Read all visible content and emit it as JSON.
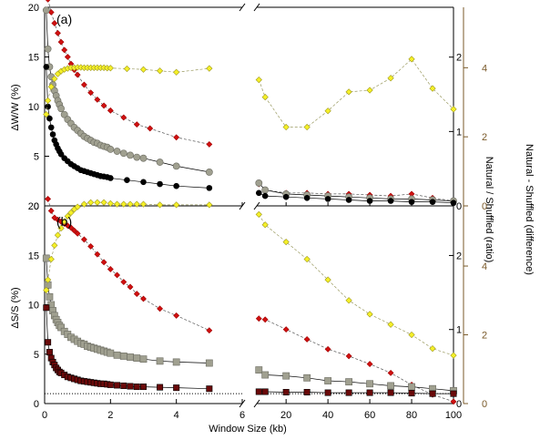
{
  "chart_data": [
    {
      "panel": "a",
      "panel_label": "(a)",
      "type": "line",
      "ylabel": "ΔW/W (%)",
      "ylim": [
        0,
        20
      ],
      "yticks": [
        "0",
        "5",
        "10",
        "15",
        "20"
      ],
      "y2label": "Natural / Shuffled (ratio)",
      "y2lim": [
        0,
        2.67
      ],
      "y2ticks": [
        "0",
        "1",
        "2"
      ],
      "y3label": "Natural - Shuffled (difference)",
      "y3lim": [
        0,
        5.75
      ],
      "y3ticks": [
        "0",
        "2",
        "4"
      ],
      "series": [
        {
          "role": "red",
          "axis": "y",
          "x": [
            0.1,
            0.2,
            0.3,
            0.4,
            0.5,
            0.6,
            0.7,
            0.8,
            0.9,
            1.0,
            1.2,
            1.4,
            1.6,
            1.8,
            2.0,
            2.4,
            2.8,
            3.2,
            4.0,
            5.0,
            7,
            10,
            20,
            30,
            40,
            50,
            60,
            70,
            80,
            90,
            100
          ],
          "y": [
            20.8,
            19.5,
            18.4,
            17.4,
            16.5,
            15.7,
            15.0,
            14.3,
            13.7,
            13.2,
            12.2,
            11.4,
            10.7,
            10.1,
            9.6,
            8.9,
            8.2,
            7.8,
            6.9,
            6.2,
            2.2,
            1.6,
            1.3,
            1.3,
            1.2,
            1.2,
            1.1,
            1.0,
            1.2,
            0.8,
            0.5
          ]
        },
        {
          "role": "gray",
          "axis": "y",
          "x": [
            0.05,
            0.1,
            0.15,
            0.2,
            0.25,
            0.3,
            0.35,
            0.4,
            0.45,
            0.5,
            0.6,
            0.7,
            0.8,
            0.9,
            1.0,
            1.1,
            1.2,
            1.3,
            1.4,
            1.5,
            1.6,
            1.7,
            1.8,
            1.9,
            2.0,
            2.2,
            2.4,
            2.6,
            2.8,
            3.0,
            3.5,
            4.0,
            5.0,
            7,
            10,
            20,
            30,
            40,
            50,
            60,
            70,
            80,
            90,
            100
          ],
          "y": [
            19.7,
            15.8,
            14.0,
            13.0,
            12.2,
            11.6,
            11.1,
            10.6,
            10.2,
            9.8,
            9.2,
            8.7,
            8.3,
            7.9,
            7.6,
            7.3,
            7.0,
            6.8,
            6.6,
            6.4,
            6.3,
            6.1,
            6.0,
            5.9,
            5.7,
            5.5,
            5.3,
            5.1,
            4.9,
            4.8,
            4.4,
            4.0,
            3.4,
            2.3,
            1.6,
            1.2,
            1.1,
            1.0,
            0.9,
            0.8,
            0.7,
            0.7,
            0.6,
            0.5
          ]
        },
        {
          "role": "black",
          "axis": "y",
          "x": [
            0.05,
            0.1,
            0.15,
            0.2,
            0.25,
            0.3,
            0.35,
            0.4,
            0.45,
            0.5,
            0.6,
            0.7,
            0.8,
            0.9,
            1.0,
            1.1,
            1.2,
            1.3,
            1.4,
            1.5,
            1.6,
            1.7,
            1.8,
            1.9,
            2.0,
            2.5,
            3.0,
            3.5,
            4.0,
            5.0,
            7,
            10,
            20,
            30,
            40,
            50,
            60,
            70,
            80,
            90,
            100
          ],
          "y": [
            14.0,
            10.0,
            8.8,
            7.9,
            7.2,
            6.6,
            6.2,
            5.8,
            5.5,
            5.2,
            4.8,
            4.5,
            4.2,
            4.0,
            3.8,
            3.6,
            3.5,
            3.4,
            3.3,
            3.2,
            3.1,
            3.0,
            2.95,
            2.9,
            2.8,
            2.6,
            2.4,
            2.2,
            2.0,
            1.8,
            1.3,
            1.0,
            0.9,
            0.8,
            0.7,
            0.6,
            0.5,
            0.5,
            0.4,
            0.4,
            0.3
          ]
        },
        {
          "role": "yellow",
          "axis": "y3",
          "x": [
            0.05,
            0.1,
            0.2,
            0.3,
            0.4,
            0.5,
            0.6,
            0.7,
            0.8,
            0.9,
            1.0,
            1.1,
            1.2,
            1.3,
            1.4,
            1.5,
            1.6,
            1.7,
            1.8,
            1.9,
            2.0,
            2.5,
            3.0,
            3.5,
            4.0,
            5.0,
            7,
            10,
            20,
            30,
            40,
            50,
            60,
            70,
            80,
            90,
            100
          ],
          "y": [
            2.65,
            3.05,
            3.45,
            3.68,
            3.82,
            3.9,
            3.95,
            3.98,
            4.0,
            4.0,
            4.01,
            4.01,
            4.0,
            4.0,
            4.0,
            4.0,
            4.0,
            4.0,
            4.0,
            3.99,
            3.99,
            3.97,
            3.95,
            3.91,
            3.87,
            3.98,
            3.65,
            3.15,
            2.28,
            2.28,
            2.75,
            3.3,
            3.35,
            3.7,
            4.25,
            3.4,
            2.8
          ]
        }
      ]
    },
    {
      "panel": "b",
      "panel_label": "(b)",
      "type": "line",
      "ylabel": "ΔS/S (%)",
      "ylim": [
        0,
        20
      ],
      "yticks": [
        "0",
        "5",
        "10",
        "15",
        "20"
      ],
      "y2lim": [
        0,
        2.67
      ],
      "y2ticks": [
        "0",
        "1",
        "2"
      ],
      "y3lim": [
        0,
        5.75
      ],
      "y3ticks": [
        "0",
        "2",
        "4"
      ],
      "xlabel": "Window Size (kb)",
      "xticks_left": [
        "0",
        "2",
        "4",
        "6"
      ],
      "xticks_right": [
        "20",
        "40",
        "60",
        "80",
        "100"
      ],
      "reference_line": 1,
      "series": [
        {
          "role": "red",
          "axis": "y",
          "x": [
            0.1,
            0.2,
            0.3,
            0.4,
            0.5,
            0.6,
            0.7,
            0.8,
            0.9,
            1.0,
            1.2,
            1.4,
            1.6,
            1.8,
            2.0,
            2.2,
            2.4,
            2.6,
            2.8,
            3.0,
            3.5,
            4.0,
            5.0,
            7,
            10,
            20,
            30,
            40,
            50,
            60,
            70,
            80,
            90,
            100
          ],
          "y": [
            20.7,
            19.5,
            18.8,
            18.6,
            18.4,
            18.2,
            18.0,
            17.8,
            17.5,
            17.2,
            16.6,
            15.9,
            15.1,
            14.3,
            13.6,
            13.0,
            12.3,
            11.8,
            11.1,
            10.6,
            9.6,
            8.9,
            7.4,
            8.6,
            8.5,
            7.5,
            6.5,
            5.5,
            4.8,
            4.0,
            3.1,
            1.9,
            0.9,
            0.2
          ]
        },
        {
          "role": "gray",
          "axis": "y",
          "x": [
            0.05,
            0.1,
            0.15,
            0.2,
            0.25,
            0.3,
            0.35,
            0.4,
            0.45,
            0.5,
            0.6,
            0.7,
            0.8,
            0.9,
            1.0,
            1.1,
            1.2,
            1.3,
            1.4,
            1.5,
            1.6,
            1.7,
            1.8,
            1.9,
            2.0,
            2.2,
            2.4,
            2.6,
            2.8,
            3.0,
            3.5,
            4.0,
            5.0,
            7,
            10,
            20,
            30,
            40,
            50,
            60,
            70,
            80,
            90,
            100
          ],
          "y": [
            14.7,
            12.0,
            10.8,
            10.0,
            9.4,
            8.9,
            8.5,
            8.2,
            7.9,
            7.7,
            7.3,
            7.0,
            6.7,
            6.5,
            6.3,
            6.1,
            6.0,
            5.8,
            5.7,
            5.6,
            5.5,
            5.4,
            5.3,
            5.2,
            5.1,
            4.9,
            4.8,
            4.7,
            4.6,
            4.5,
            4.3,
            4.2,
            4.1,
            3.4,
            2.9,
            2.8,
            2.6,
            2.3,
            2.2,
            2.0,
            1.8,
            1.7,
            1.5,
            1.3
          ]
        },
        {
          "role": "darkred",
          "axis": "y",
          "x": [
            0.05,
            0.1,
            0.15,
            0.2,
            0.25,
            0.3,
            0.35,
            0.4,
            0.45,
            0.5,
            0.6,
            0.7,
            0.8,
            0.9,
            1.0,
            1.1,
            1.2,
            1.3,
            1.4,
            1.5,
            1.6,
            1.7,
            1.8,
            1.9,
            2.0,
            2.2,
            2.4,
            2.6,
            2.8,
            3.0,
            3.5,
            4.0,
            5.0,
            7,
            10,
            20,
            30,
            40,
            50,
            60,
            70,
            80,
            90,
            100
          ],
          "y": [
            9.7,
            6.2,
            5.2,
            4.6,
            4.2,
            3.9,
            3.6,
            3.4,
            3.2,
            3.1,
            2.9,
            2.7,
            2.6,
            2.5,
            2.4,
            2.3,
            2.25,
            2.2,
            2.15,
            2.1,
            2.05,
            2.0,
            2.0,
            1.95,
            1.9,
            1.85,
            1.8,
            1.75,
            1.7,
            1.7,
            1.65,
            1.6,
            1.5,
            1.2,
            1.2,
            1.15,
            1.15,
            1.1,
            1.1,
            1.1,
            1.1,
            1.05,
            1.0,
            1.0
          ]
        },
        {
          "role": "yellow",
          "axis": "y3",
          "x": [
            0.05,
            0.1,
            0.2,
            0.3,
            0.4,
            0.5,
            0.6,
            0.7,
            0.8,
            0.9,
            1.0,
            1.2,
            1.4,
            1.6,
            1.8,
            2.0,
            2.2,
            2.4,
            2.6,
            2.8,
            3.0,
            3.5,
            4.0,
            5.0,
            7,
            10,
            20,
            30,
            40,
            50,
            60,
            70,
            80,
            90,
            100
          ],
          "y": [
            3.3,
            3.6,
            4.2,
            4.6,
            4.9,
            5.1,
            5.3,
            5.45,
            5.55,
            5.65,
            5.72,
            5.8,
            5.85,
            5.85,
            5.85,
            5.82,
            5.8,
            5.8,
            5.8,
            5.8,
            5.8,
            5.78,
            5.78,
            5.78,
            5.5,
            5.2,
            4.7,
            4.2,
            3.6,
            3.0,
            2.6,
            2.3,
            2.0,
            1.6,
            1.4
          ]
        }
      ]
    }
  ],
  "colors": {
    "red": "#d01010",
    "gray": "#a0a090",
    "black": "#000000",
    "darkred": "#6a0a0a",
    "yellow": "#f5f028",
    "right_axis_2": "#7a5a2a"
  },
  "marker_shapes": {
    "red": "diamond",
    "gray": "circle",
    "black": "circle",
    "darkred": "square",
    "yellow": "diamond",
    "gray_b": "square"
  }
}
